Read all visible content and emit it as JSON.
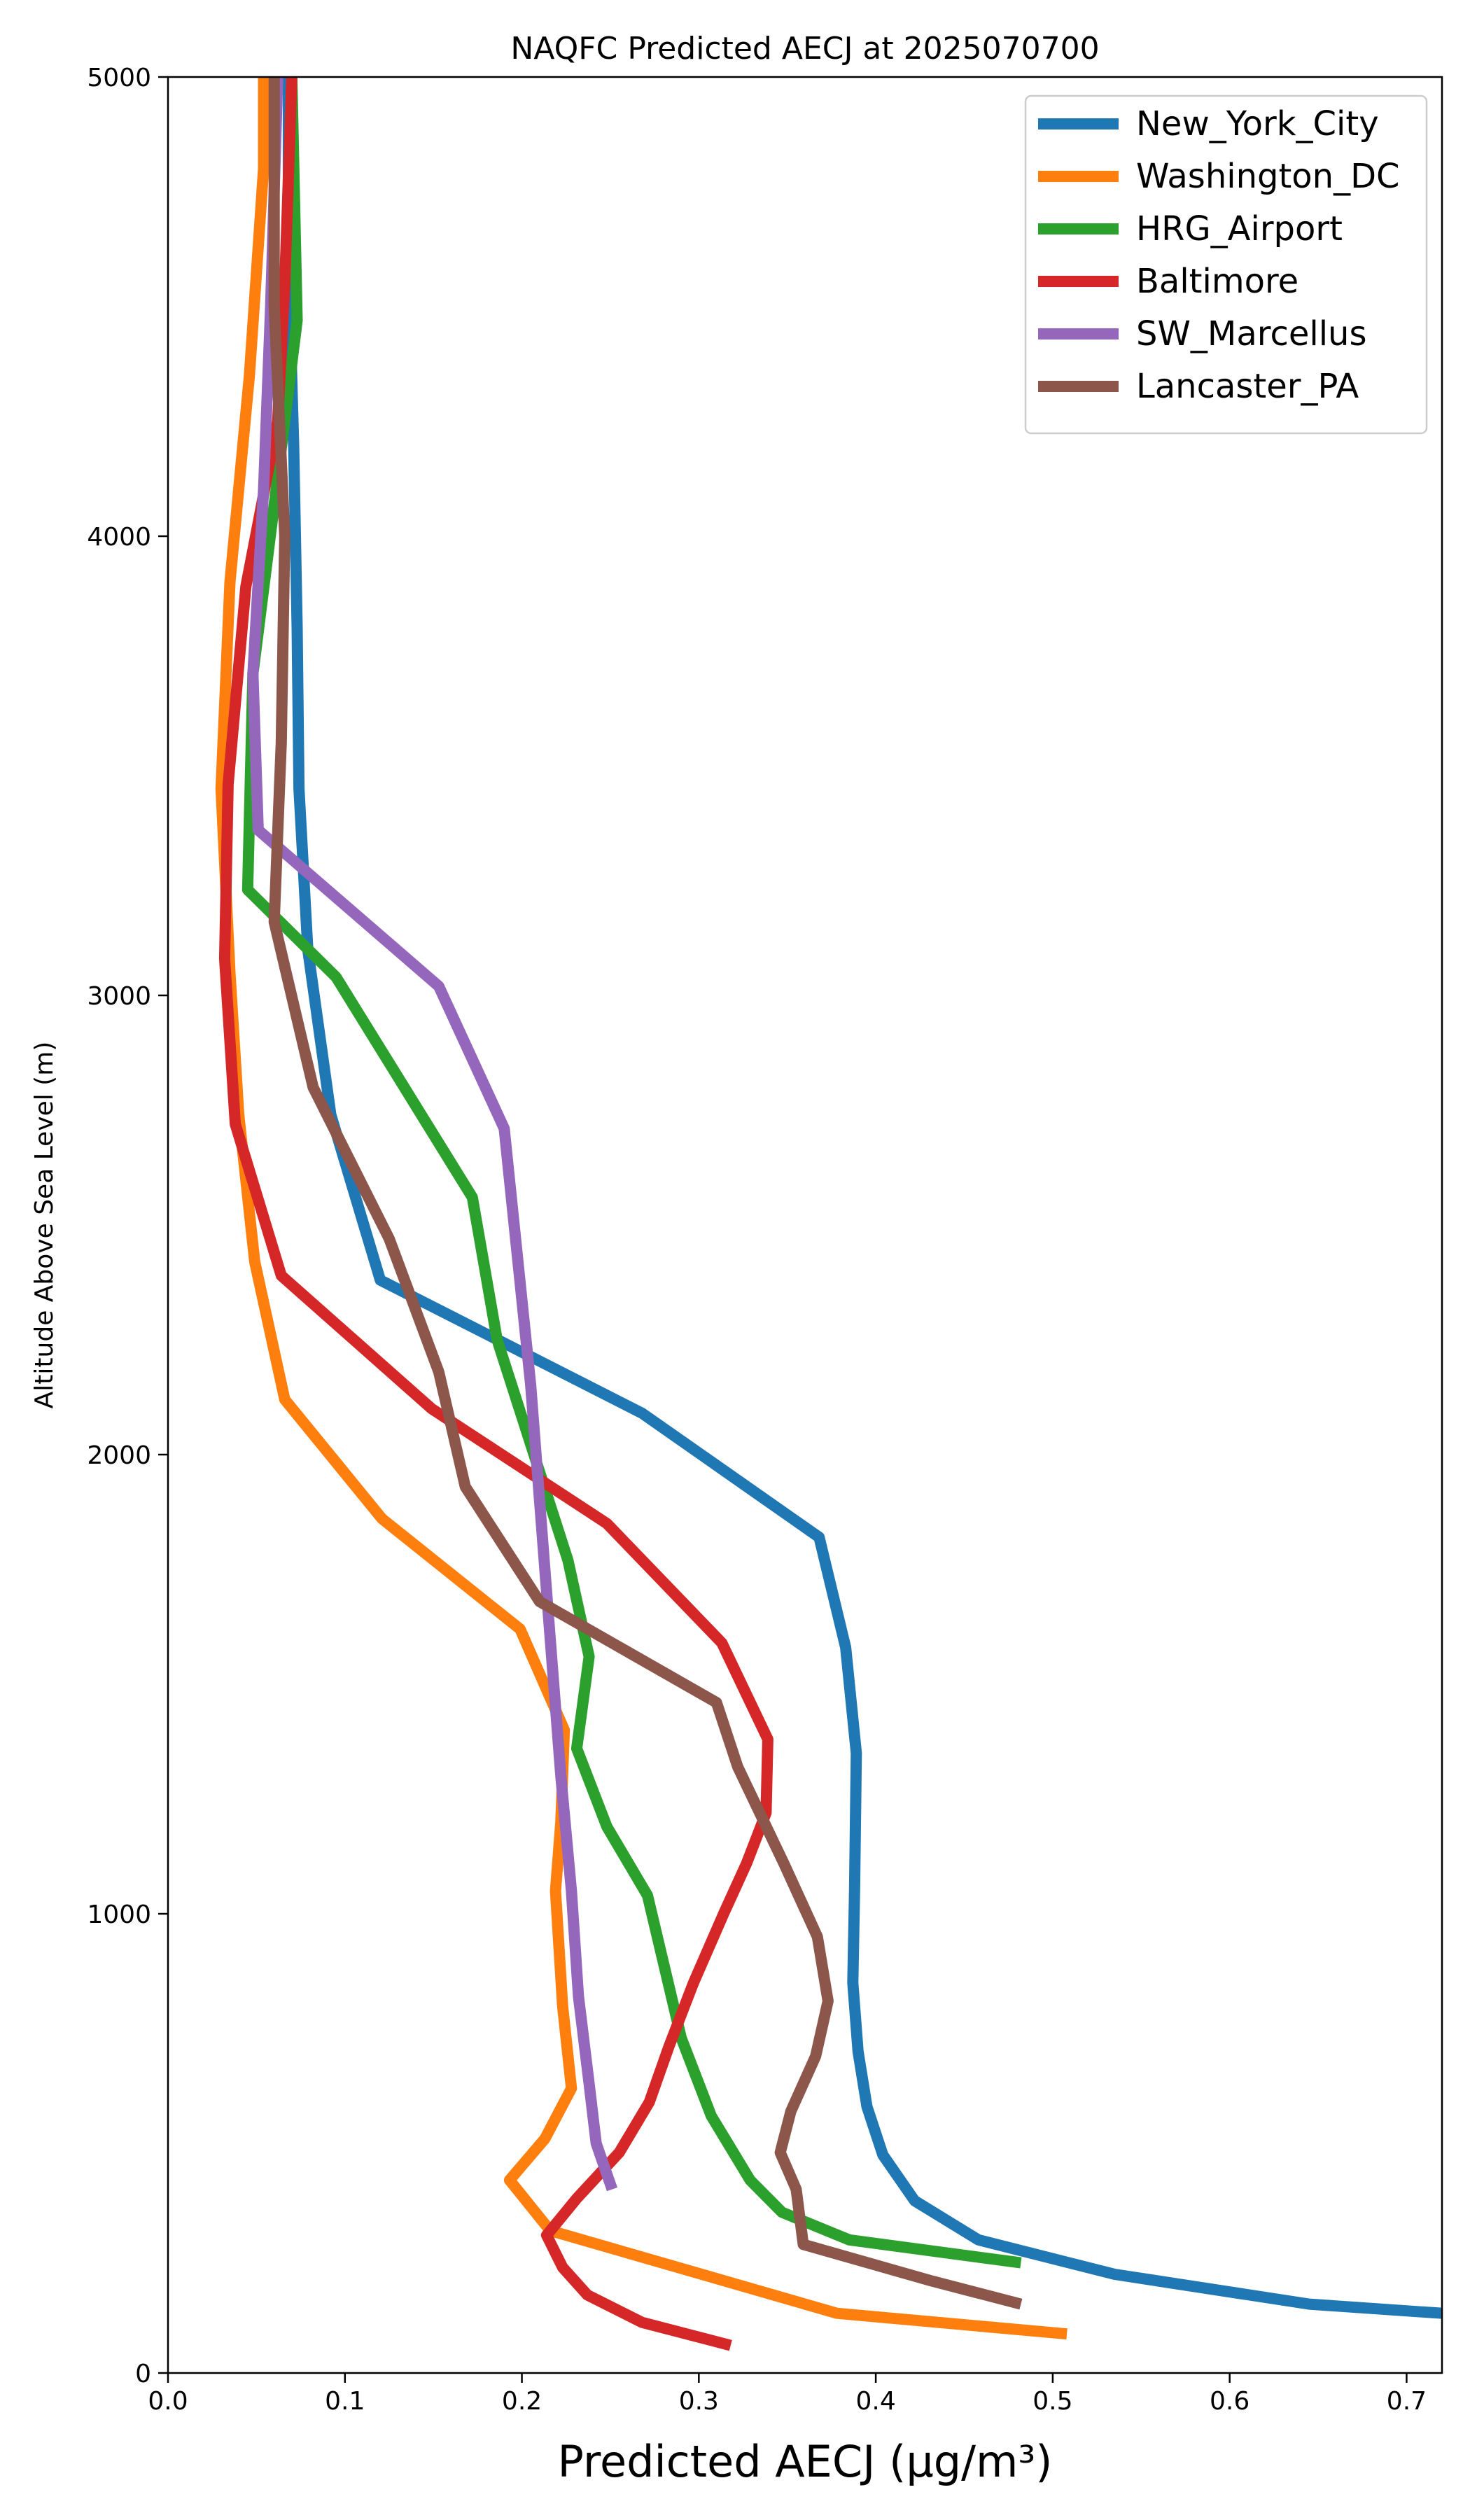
{
  "chart_data": {
    "type": "line",
    "title": "NAQFC Predicted AECJ at 2025070700",
    "xlabel": "Predicted AECJ (μg/m³)",
    "ylabel": "Altitude Above Sea Level (m)",
    "xlim": [
      0,
      0.72
    ],
    "ylim": [
      0,
      5000
    ],
    "xticks": [
      "0.0",
      "0.1",
      "0.2",
      "0.3",
      "0.4",
      "0.5",
      "0.6",
      "0.7"
    ],
    "yticks": [
      "0",
      "1000",
      "2000",
      "3000",
      "4000",
      "5000"
    ],
    "legend_position": "top-right",
    "grid": false,
    "series": [
      {
        "name": "New_York_City",
        "color": "#1f77b4",
        "points": [
          [
            0.72,
            130
          ],
          [
            0.645,
            150
          ],
          [
            0.535,
            215
          ],
          [
            0.458,
            290
          ],
          [
            0.422,
            375
          ],
          [
            0.404,
            475
          ],
          [
            0.395,
            580
          ],
          [
            0.39,
            700
          ],
          [
            0.387,
            850
          ],
          [
            0.388,
            1050
          ],
          [
            0.389,
            1350
          ],
          [
            0.383,
            1580
          ],
          [
            0.368,
            1820
          ],
          [
            0.268,
            2090
          ],
          [
            0.12,
            2380
          ],
          [
            0.092,
            2740
          ],
          [
            0.079,
            3100
          ],
          [
            0.074,
            3450
          ],
          [
            0.073,
            3800
          ],
          [
            0.071,
            4200
          ],
          [
            0.068,
            4600
          ],
          [
            0.068,
            5000
          ]
        ]
      },
      {
        "name": "Washington_DC",
        "color": "#ff7f0e",
        "points": [
          [
            0.508,
            85
          ],
          [
            0.378,
            130
          ],
          [
            0.216,
            310
          ],
          [
            0.193,
            420
          ],
          [
            0.213,
            510
          ],
          [
            0.228,
            620
          ],
          [
            0.223,
            800
          ],
          [
            0.219,
            1050
          ],
          [
            0.222,
            1200
          ],
          [
            0.224,
            1400
          ],
          [
            0.199,
            1620
          ],
          [
            0.121,
            1860
          ],
          [
            0.066,
            2120
          ],
          [
            0.049,
            2420
          ],
          [
            0.04,
            2740
          ],
          [
            0.035,
            3050
          ],
          [
            0.03,
            3450
          ],
          [
            0.035,
            3900
          ],
          [
            0.046,
            4350
          ],
          [
            0.054,
            4800
          ],
          [
            0.054,
            5000
          ]
        ]
      },
      {
        "name": "HRG_Airport",
        "color": "#2ca02c",
        "points": [
          [
            0.482,
            240
          ],
          [
            0.385,
            290
          ],
          [
            0.347,
            350
          ],
          [
            0.329,
            420
          ],
          [
            0.307,
            560
          ],
          [
            0.29,
            730
          ],
          [
            0.271,
            1040
          ],
          [
            0.248,
            1190
          ],
          [
            0.231,
            1360
          ],
          [
            0.238,
            1560
          ],
          [
            0.226,
            1770
          ],
          [
            0.186,
            2250
          ],
          [
            0.172,
            2560
          ],
          [
            0.095,
            3040
          ],
          [
            0.045,
            3230
          ],
          [
            0.048,
            3700
          ],
          [
            0.063,
            4160
          ],
          [
            0.073,
            4470
          ],
          [
            0.07,
            5000
          ]
        ]
      },
      {
        "name": "Baltimore",
        "color": "#d62728",
        "points": [
          [
            0.318,
            60
          ],
          [
            0.268,
            110
          ],
          [
            0.237,
            170
          ],
          [
            0.223,
            230
          ],
          [
            0.214,
            300
          ],
          [
            0.231,
            380
          ],
          [
            0.255,
            480
          ],
          [
            0.272,
            590
          ],
          [
            0.283,
            710
          ],
          [
            0.297,
            850
          ],
          [
            0.314,
            1000
          ],
          [
            0.327,
            1110
          ],
          [
            0.338,
            1220
          ],
          [
            0.339,
            1380
          ],
          [
            0.313,
            1590
          ],
          [
            0.248,
            1850
          ],
          [
            0.149,
            2100
          ],
          [
            0.064,
            2390
          ],
          [
            0.038,
            2720
          ],
          [
            0.032,
            3080
          ],
          [
            0.034,
            3460
          ],
          [
            0.044,
            3890
          ],
          [
            0.062,
            4250
          ],
          [
            0.066,
            4550
          ],
          [
            0.07,
            5000
          ]
        ]
      },
      {
        "name": "SW_Marcellus",
        "color": "#9467bd",
        "points": [
          [
            0.251,
            400
          ],
          [
            0.242,
            500
          ],
          [
            0.238,
            630
          ],
          [
            0.232,
            820
          ],
          [
            0.228,
            1050
          ],
          [
            0.222,
            1300
          ],
          [
            0.214,
            1700
          ],
          [
            0.205,
            2150
          ],
          [
            0.19,
            2710
          ],
          [
            0.153,
            3020
          ],
          [
            0.051,
            3360
          ],
          [
            0.048,
            3700
          ],
          [
            0.054,
            4100
          ],
          [
            0.058,
            4500
          ],
          [
            0.062,
            5000
          ]
        ]
      },
      {
        "name": "Lancaster_PA",
        "color": "#8c564b",
        "points": [
          [
            0.482,
            150
          ],
          [
            0.432,
            200
          ],
          [
            0.359,
            280
          ],
          [
            0.355,
            400
          ],
          [
            0.346,
            480
          ],
          [
            0.352,
            570
          ],
          [
            0.366,
            690
          ],
          [
            0.373,
            810
          ],
          [
            0.367,
            950
          ],
          [
            0.348,
            1110
          ],
          [
            0.322,
            1320
          ],
          [
            0.31,
            1460
          ],
          [
            0.21,
            1680
          ],
          [
            0.168,
            1930
          ],
          [
            0.153,
            2180
          ],
          [
            0.125,
            2470
          ],
          [
            0.082,
            2800
          ],
          [
            0.06,
            3160
          ],
          [
            0.064,
            3550
          ],
          [
            0.066,
            4000
          ],
          [
            0.06,
            4500
          ],
          [
            0.06,
            5000
          ]
        ]
      }
    ]
  }
}
